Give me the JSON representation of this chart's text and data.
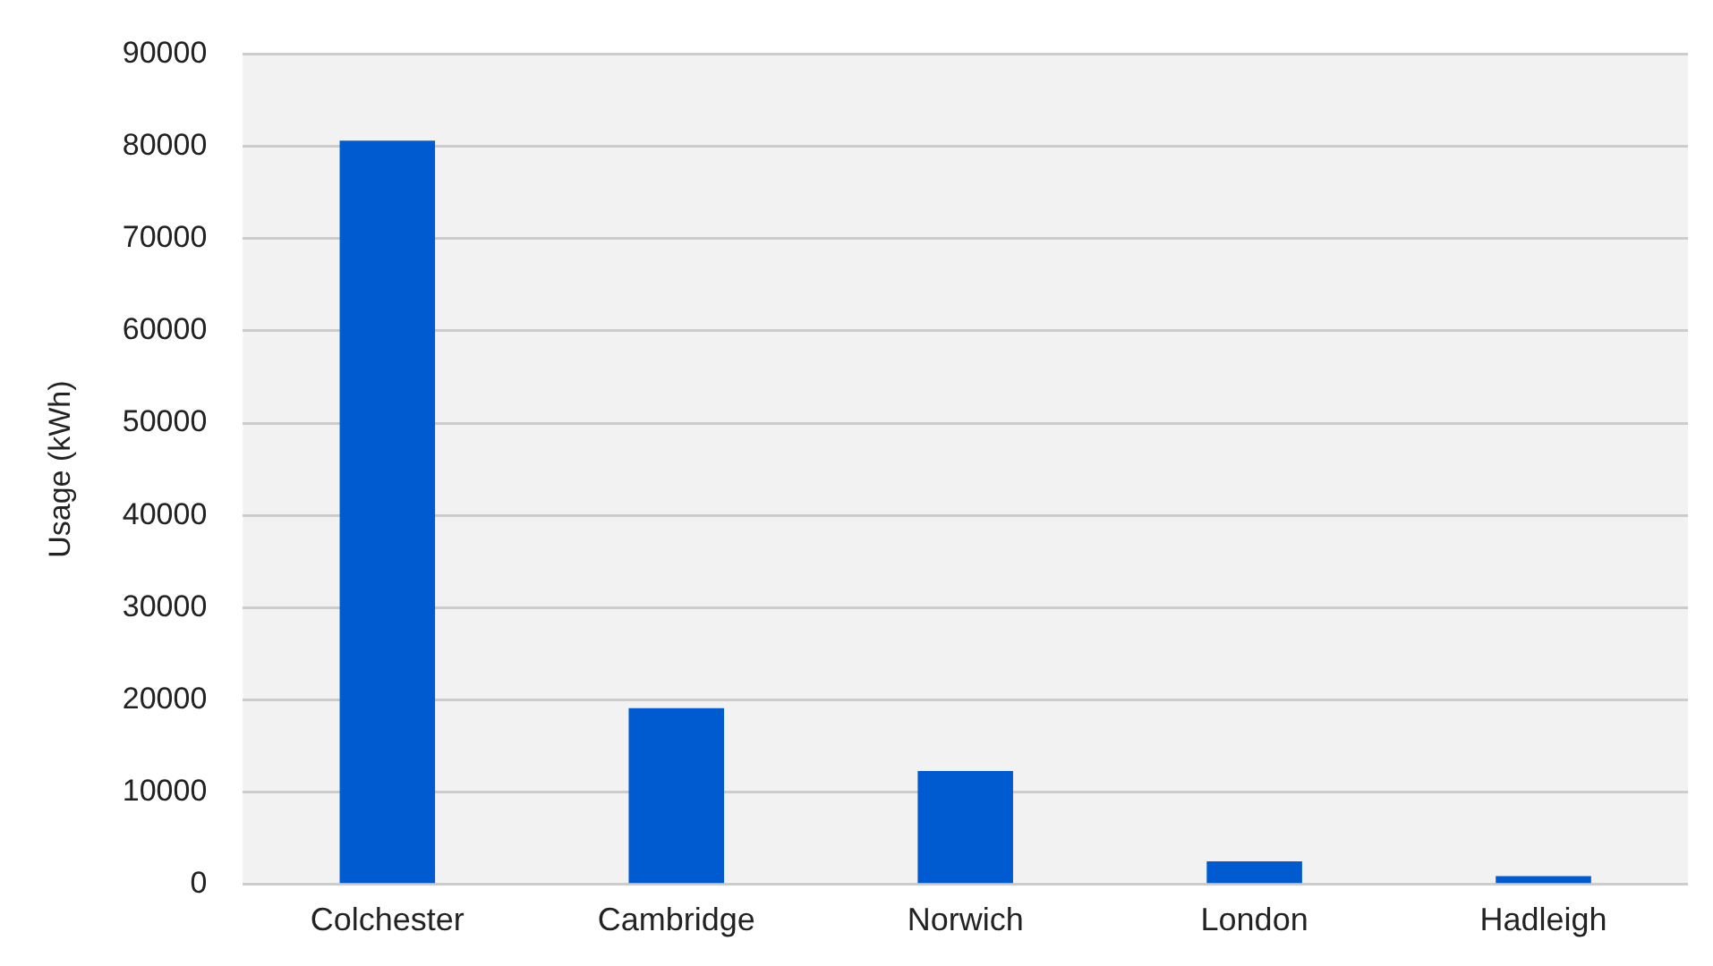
{
  "chart_data": {
    "type": "bar",
    "ylabel": "Usage (kWh)",
    "categories": [
      "Colchester",
      "Cambridge",
      "Norwich",
      "London",
      "Hadleigh"
    ],
    "values": [
      80600,
      19100,
      12300,
      2500,
      900
    ],
    "color": "#005bd0",
    "ylim": [
      0,
      90000
    ],
    "yticks": [
      0,
      10000,
      20000,
      30000,
      40000,
      50000,
      60000,
      70000,
      80000,
      90000
    ],
    "grid": "y",
    "legend": false
  }
}
